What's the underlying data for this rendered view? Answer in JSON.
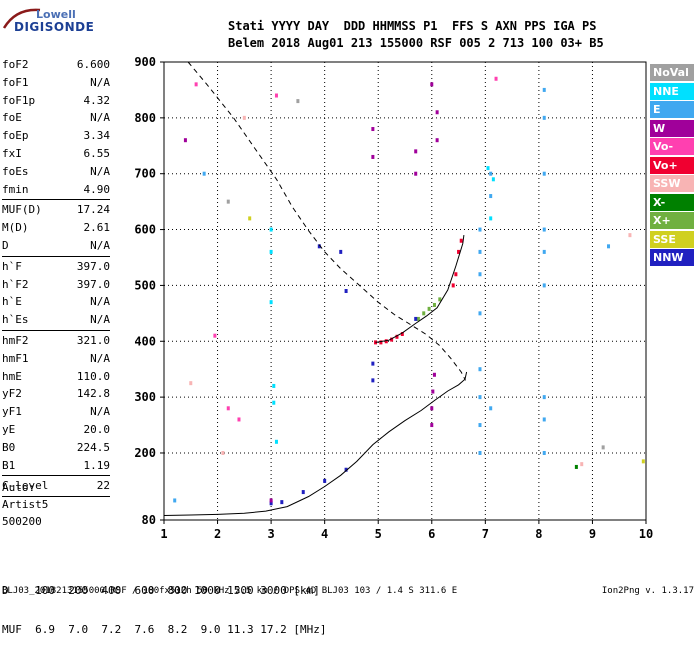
{
  "logo": {
    "line1": "Lowell",
    "line2": "DIGISONDE"
  },
  "header": {
    "top": "Stati YYYY DAY  DDD HHMMSS P1  FFS S AXN PPS IGA PS",
    "bottom": "Belem 2018 Aug01 213 155000 RSF 005 2 713 100 03+ B5"
  },
  "params": [
    {
      "name": "foF2",
      "value": "6.600"
    },
    {
      "name": "foF1",
      "value": "N/A"
    },
    {
      "name": "foF1p",
      "value": "4.32"
    },
    {
      "name": "foE",
      "value": "N/A"
    },
    {
      "name": "foEp",
      "value": "3.34"
    },
    {
      "name": "fxI",
      "value": "6.55"
    },
    {
      "name": "foEs",
      "value": "N/A"
    },
    {
      "name": "fmin",
      "value": "4.90",
      "sep": true
    },
    {
      "name": "MUF(D)",
      "value": "17.24"
    },
    {
      "name": "M(D)",
      "value": "2.61"
    },
    {
      "name": "D",
      "value": "N/A",
      "sep": true
    },
    {
      "name": "h`F",
      "value": "397.0"
    },
    {
      "name": "h`F2",
      "value": "397.0"
    },
    {
      "name": "h`E",
      "value": "N/A"
    },
    {
      "name": "h`Es",
      "value": "N/A",
      "sep": true
    },
    {
      "name": "hmF2",
      "value": "321.0"
    },
    {
      "name": "hmF1",
      "value": "N/A"
    },
    {
      "name": "hmE",
      "value": "110.0"
    },
    {
      "name": "yF2",
      "value": "142.8"
    },
    {
      "name": "yF1",
      "value": "N/A"
    },
    {
      "name": "yE",
      "value": "20.0"
    },
    {
      "name": "B0",
      "value": "224.5"
    },
    {
      "name": "B1",
      "value": "1.19",
      "sep": true
    },
    {
      "name": "C-level",
      "value": "22",
      "sep": true
    }
  ],
  "artist": [
    "Auto:",
    "Artist5",
    "500200"
  ],
  "legend": [
    {
      "label": "NoVal",
      "color": "#a0a0a0"
    },
    {
      "label": "NNE",
      "color": "#00e0ff"
    },
    {
      "label": "E",
      "color": "#40a8f0"
    },
    {
      "label": "W",
      "color": "#a0009a"
    },
    {
      "label": "Vo-",
      "color": "#ff40b0"
    },
    {
      "label": "Vo+",
      "color": "#f00030"
    },
    {
      "label": "SSW",
      "color": "#f8b4b4"
    },
    {
      "label": "X-",
      "color": "#008000"
    },
    {
      "label": "X+",
      "color": "#70b040"
    },
    {
      "label": "SSE",
      "color": "#d0d020"
    },
    {
      "label": "NNW",
      "color": "#2020c0"
    }
  ],
  "dtable": {
    "row1": "D    100  200  400  600  800 1000 1500 3000 [km]",
    "row2": "MUF  6.9  7.0  7.2  7.6  8.2  9.0 11.3 17.2 [MHz]"
  },
  "footer": "BLJ03_2018213155000.RSF / 180fx512h 50 kHz 2.5 km / DPS-4D BLJ03 103 / 1.4 S 311.6 E",
  "version": "Ion2Png v. 1.3.17",
  "chart_data": {
    "type": "scatter",
    "xlim": [
      1,
      10
    ],
    "ylim": [
      80,
      900
    ],
    "x_ticks": [
      1,
      2,
      3,
      4,
      5,
      6,
      7,
      8,
      9,
      10
    ],
    "y_ticks": [
      80,
      200,
      300,
      400,
      500,
      600,
      700,
      800,
      900
    ],
    "grid": true,
    "legend_position": "right",
    "curves": [
      {
        "style": "solid",
        "points": [
          [
            1.0,
            88
          ],
          [
            1.5,
            89
          ],
          [
            2.0,
            90
          ],
          [
            2.5,
            92
          ],
          [
            2.9,
            96
          ],
          [
            3.3,
            104
          ],
          [
            3.7,
            122
          ],
          [
            4.0,
            140
          ],
          [
            4.3,
            160
          ],
          [
            4.6,
            185
          ],
          [
            4.9,
            215
          ],
          [
            5.2,
            238
          ],
          [
            5.5,
            258
          ],
          [
            5.8,
            276
          ],
          [
            6.05,
            294
          ],
          [
            6.3,
            311
          ],
          [
            6.5,
            322
          ],
          [
            6.62,
            332
          ],
          [
            6.65,
            345
          ]
        ]
      },
      {
        "style": "solid",
        "points": [
          [
            4.95,
            398
          ],
          [
            5.2,
            402
          ],
          [
            5.45,
            415
          ],
          [
            5.7,
            432
          ],
          [
            5.9,
            445
          ],
          [
            6.1,
            460
          ],
          [
            6.3,
            492
          ],
          [
            6.45,
            535
          ],
          [
            6.58,
            575
          ],
          [
            6.6,
            590
          ]
        ]
      },
      {
        "style": "dashed",
        "points": [
          [
            1.45,
            900
          ],
          [
            1.8,
            860
          ],
          [
            2.3,
            800
          ],
          [
            2.7,
            745
          ],
          [
            3.1,
            690
          ],
          [
            3.4,
            640
          ],
          [
            3.7,
            598
          ],
          [
            4.0,
            560
          ],
          [
            4.3,
            530
          ],
          [
            4.65,
            500
          ],
          [
            5.0,
            470
          ],
          [
            5.3,
            448
          ],
          [
            5.6,
            430
          ],
          [
            5.9,
            412
          ],
          [
            6.15,
            392
          ],
          [
            6.35,
            370
          ],
          [
            6.55,
            345
          ],
          [
            6.63,
            330
          ]
        ]
      }
    ],
    "trace_points": [
      {
        "color": "#f00030",
        "points": [
          [
            4.95,
            398
          ],
          [
            5.05,
            398
          ],
          [
            5.15,
            400
          ],
          [
            5.25,
            403
          ],
          [
            5.35,
            408
          ],
          [
            5.45,
            413
          ],
          [
            6.4,
            500
          ],
          [
            6.45,
            520
          ],
          [
            6.5,
            560
          ],
          [
            6.55,
            580
          ]
        ]
      },
      {
        "color": "#70b040",
        "points": [
          [
            5.75,
            440
          ],
          [
            5.85,
            450
          ],
          [
            5.95,
            458
          ],
          [
            6.05,
            465
          ],
          [
            6.15,
            475
          ]
        ]
      },
      {
        "color": "#2020c0",
        "points": [
          [
            3.0,
            110
          ],
          [
            3.2,
            112
          ],
          [
            3.6,
            130
          ],
          [
            4.0,
            150
          ],
          [
            4.4,
            170
          ],
          [
            5.7,
            440
          ],
          [
            4.9,
            330
          ],
          [
            4.9,
            360
          ],
          [
            3.9,
            570
          ],
          [
            4.3,
            560
          ],
          [
            4.4,
            490
          ]
        ]
      },
      {
        "color": "#a0009a",
        "points": [
          [
            6.0,
            250
          ],
          [
            6.0,
            280
          ],
          [
            6.02,
            310
          ],
          [
            6.05,
            340
          ],
          [
            5.7,
            740
          ],
          [
            5.7,
            700
          ],
          [
            6.1,
            760
          ],
          [
            6.1,
            810
          ],
          [
            6.0,
            860
          ],
          [
            4.9,
            730
          ],
          [
            4.9,
            780
          ],
          [
            1.4,
            760
          ],
          [
            3.0,
            115
          ]
        ]
      },
      {
        "color": "#40a8f0",
        "points": [
          [
            6.9,
            200
          ],
          [
            6.9,
            250
          ],
          [
            6.9,
            300
          ],
          [
            6.9,
            350
          ],
          [
            6.9,
            450
          ],
          [
            6.9,
            520
          ],
          [
            6.9,
            560
          ],
          [
            6.9,
            600
          ],
          [
            7.1,
            700
          ],
          [
            7.1,
            660
          ],
          [
            7.1,
            280
          ],
          [
            8.1,
            500
          ],
          [
            8.1,
            560
          ],
          [
            8.1,
            600
          ],
          [
            8.1,
            700
          ],
          [
            8.1,
            800
          ],
          [
            8.1,
            850
          ],
          [
            8.1,
            300
          ],
          [
            8.1,
            260
          ],
          [
            8.1,
            200
          ],
          [
            1.2,
            115
          ],
          [
            1.75,
            700
          ],
          [
            9.3,
            570
          ]
        ]
      },
      {
        "color": "#00e0ff",
        "points": [
          [
            3.0,
            600
          ],
          [
            3.0,
            560
          ],
          [
            3.0,
            470
          ],
          [
            3.05,
            320
          ],
          [
            3.05,
            290
          ],
          [
            3.1,
            220
          ],
          [
            7.1,
            620
          ],
          [
            7.15,
            690
          ],
          [
            7.05,
            710
          ]
        ]
      },
      {
        "color": "#ff40b0",
        "points": [
          [
            3.1,
            840
          ],
          [
            1.6,
            860
          ],
          [
            2.4,
            260
          ],
          [
            1.95,
            410
          ],
          [
            7.2,
            870
          ],
          [
            2.2,
            280
          ]
        ]
      },
      {
        "color": "#f8b4b4",
        "points": [
          [
            1.5,
            325
          ],
          [
            2.5,
            800
          ],
          [
            2.1,
            200
          ],
          [
            9.7,
            590
          ],
          [
            8.8,
            180
          ]
        ]
      },
      {
        "color": "#d0d020",
        "points": [
          [
            2.6,
            620
          ],
          [
            9.95,
            185
          ]
        ]
      },
      {
        "color": "#a0a0a0",
        "points": [
          [
            3.5,
            830
          ],
          [
            2.2,
            650
          ],
          [
            9.2,
            210
          ]
        ]
      },
      {
        "color": "#008000",
        "points": [
          [
            8.7,
            175
          ]
        ]
      }
    ]
  }
}
